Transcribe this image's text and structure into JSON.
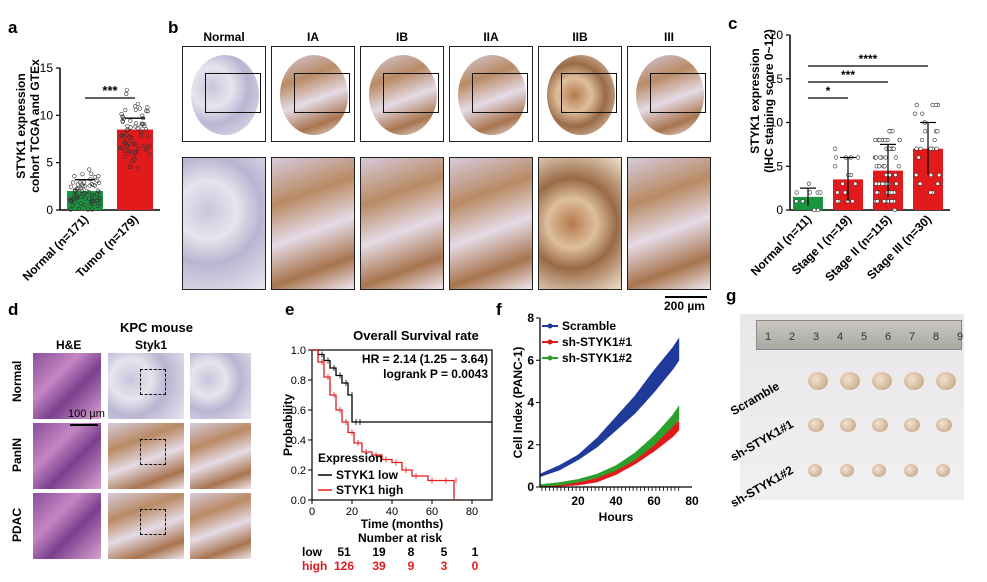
{
  "panels": {
    "a": "a",
    "b": "b",
    "c": "c",
    "d": "d",
    "e": "e",
    "f": "f",
    "g": "g"
  },
  "panel_a": {
    "ylabel_line1": "STYK1 expression",
    "ylabel_line2": "cohort TCGA and GTEx",
    "sig": "***",
    "chart_data": {
      "type": "bar",
      "categories": [
        "Normal (n=171)",
        "Tumor (n=179)"
      ],
      "values": [
        2.0,
        8.5
      ],
      "colors": [
        "#1a9641",
        "#e31a1c"
      ],
      "ylim": [
        0,
        15
      ],
      "yticks": [
        0,
        5,
        10,
        15
      ]
    }
  },
  "panel_b": {
    "headers": [
      "Normal",
      "IA",
      "IB",
      "IIA",
      "IIB",
      "III"
    ],
    "scalebar": "200 µm"
  },
  "panel_c": {
    "ylabel_line1": "STYK1 expression",
    "ylabel_line2": "(IHC staining score 0~12)",
    "sig": [
      "*",
      "***",
      "****"
    ],
    "chart_data": {
      "type": "bar",
      "categories": [
        "Normal (n=11)",
        "Stage I (n=19)",
        "Stage II (n=115)",
        "Stage III (n=30)"
      ],
      "values": [
        1.5,
        3.5,
        4.5,
        7.0
      ],
      "colors": [
        "#1a9641",
        "#e31a1c",
        "#e31a1c",
        "#e31a1c"
      ],
      "ylim": [
        0,
        20
      ],
      "yticks": [
        0,
        5,
        10,
        15,
        20
      ]
    }
  },
  "panel_d": {
    "title": "KPC mouse",
    "col_he": "H&E",
    "col_styk1": "Styk1",
    "rows": [
      "Normal",
      "PanIN",
      "PDAC"
    ],
    "scalebar": "100 µm"
  },
  "panel_e": {
    "title": "Overall Survival rate",
    "hr": "HR = 2.14 (1.25 − 3.64)",
    "logrank": "logrank P = 0.0043",
    "ylabel": "Probability",
    "xlabel": "Time (months)",
    "legend_title": "Expression",
    "legend_low": "STYK1 low",
    "legend_high": "STYK1 high",
    "risk_title": "Number at risk",
    "risk_low": [
      "low",
      "51",
      "19",
      "8",
      "5",
      "1"
    ],
    "risk_high": [
      "high",
      "126",
      "39",
      "9",
      "3",
      "0"
    ],
    "chart_data": {
      "type": "line",
      "xlim": [
        0,
        90
      ],
      "ylim": [
        0,
        1.0
      ],
      "xticks": [
        0,
        20,
        40,
        60,
        80
      ],
      "yticks": [
        0.0,
        0.2,
        0.4,
        0.6,
        0.8,
        1.0
      ],
      "series": [
        {
          "name": "STYK1 low",
          "color": "#000000",
          "x": [
            0,
            3,
            6,
            9,
            12,
            15,
            18,
            20,
            22,
            90
          ],
          "y": [
            1.0,
            0.97,
            0.93,
            0.88,
            0.83,
            0.78,
            0.7,
            0.52,
            0.52,
            0.52
          ]
        },
        {
          "name": "STYK1 high",
          "color": "#e31a1c",
          "x": [
            0,
            3,
            6,
            9,
            12,
            15,
            18,
            21,
            25,
            30,
            35,
            40,
            45,
            50,
            58,
            65,
            70,
            71
          ],
          "y": [
            1.0,
            0.92,
            0.82,
            0.7,
            0.6,
            0.52,
            0.45,
            0.38,
            0.32,
            0.3,
            0.27,
            0.25,
            0.2,
            0.16,
            0.13,
            0.13,
            0.13,
            0.0
          ]
        }
      ]
    }
  },
  "panel_f": {
    "ylabel": "Cell Index (PANC-1)",
    "xlabel": "Hours",
    "legend": [
      "Scramble",
      "sh-STYK1#1",
      "sh-STYK1#2"
    ],
    "chart_data": {
      "type": "area",
      "xlim": [
        0,
        80
      ],
      "ylim": [
        0,
        8
      ],
      "xticks": [
        20,
        40,
        60,
        80
      ],
      "yticks": [
        0,
        2,
        4,
        6,
        8
      ],
      "series": [
        {
          "name": "Scramble",
          "color": "#1f3a9b",
          "x": [
            0,
            10,
            20,
            30,
            40,
            50,
            60,
            70,
            73
          ],
          "lower": [
            0.5,
            0.8,
            1.3,
            1.9,
            2.7,
            3.5,
            4.5,
            5.6,
            6.0
          ],
          "upper": [
            0.6,
            1.0,
            1.5,
            2.3,
            3.3,
            4.3,
            5.5,
            6.6,
            7.0
          ]
        },
        {
          "name": "sh-STYK1#1",
          "color": "#e31a1c",
          "x": [
            0,
            10,
            20,
            30,
            40,
            50,
            60,
            70,
            73
          ],
          "lower": [
            0.0,
            0.05,
            0.1,
            0.25,
            0.6,
            1.1,
            1.7,
            2.4,
            2.7
          ],
          "upper": [
            0.05,
            0.1,
            0.2,
            0.4,
            0.8,
            1.4,
            2.1,
            2.9,
            3.1
          ]
        },
        {
          "name": "sh-STYK1#2",
          "color": "#2ca02c",
          "x": [
            0,
            10,
            20,
            30,
            40,
            50,
            60,
            70,
            73
          ],
          "lower": [
            0.05,
            0.1,
            0.25,
            0.45,
            0.8,
            1.3,
            2.0,
            2.9,
            3.2
          ],
          "upper": [
            0.1,
            0.2,
            0.35,
            0.6,
            1.0,
            1.6,
            2.4,
            3.4,
            3.8
          ]
        }
      ]
    }
  },
  "panel_g": {
    "rows": [
      "Scramble",
      "sh-STYK1#1",
      "sh-STYK1#2"
    ],
    "ruler_numbers": [
      "1",
      "2",
      "3",
      "4",
      "5",
      "6",
      "7",
      "8",
      "9"
    ]
  }
}
